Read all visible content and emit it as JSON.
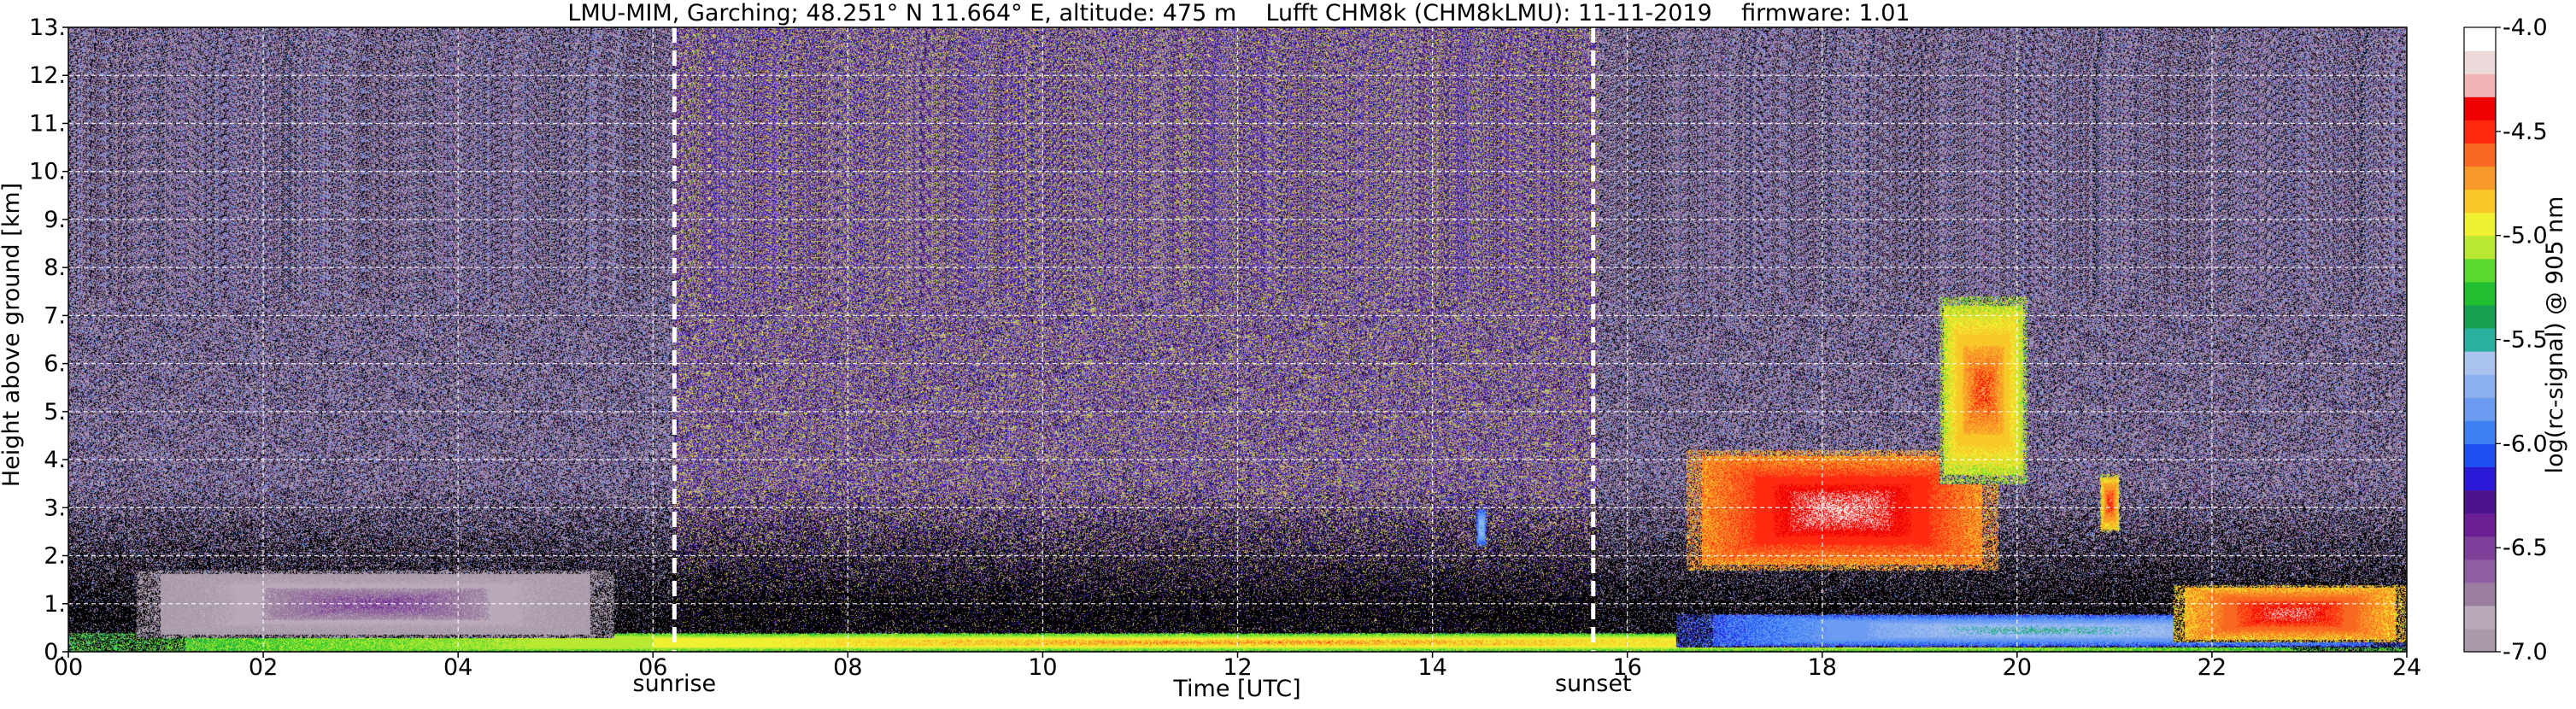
{
  "chart_data": {
    "type": "heatmap",
    "title": "LMU-MIM, Garching; 48.251° N 11.664° E, altitude: 475 m    Lufft CHM8k (CHM8kLMU): 11-11-2019    firmware: 1.01",
    "xlabel": "Time [UTC]",
    "ylabel": "Height above ground [km]",
    "xlim": [
      0,
      24
    ],
    "ylim": [
      0,
      13
    ],
    "x_ticks": [
      {
        "value": 0,
        "label": "00"
      },
      {
        "value": 2,
        "label": "02"
      },
      {
        "value": 4,
        "label": "04"
      },
      {
        "value": 6,
        "label": "06"
      },
      {
        "value": 8,
        "label": "08"
      },
      {
        "value": 10,
        "label": "10"
      },
      {
        "value": 12,
        "label": "12"
      },
      {
        "value": 14,
        "label": "14"
      },
      {
        "value": 16,
        "label": "16"
      },
      {
        "value": 18,
        "label": "18"
      },
      {
        "value": 20,
        "label": "20"
      },
      {
        "value": 22,
        "label": "22"
      },
      {
        "value": 24,
        "label": "24"
      }
    ],
    "y_ticks": [
      {
        "value": 0,
        "label": "0."
      },
      {
        "value": 1,
        "label": "1."
      },
      {
        "value": 2,
        "label": "2."
      },
      {
        "value": 3,
        "label": "3."
      },
      {
        "value": 4,
        "label": "4."
      },
      {
        "value": 5,
        "label": "5."
      },
      {
        "value": 6,
        "label": "6."
      },
      {
        "value": 7,
        "label": "7."
      },
      {
        "value": 8,
        "label": "8."
      },
      {
        "value": 9,
        "label": "9."
      },
      {
        "value": 10,
        "label": "10."
      },
      {
        "value": 11,
        "label": "11."
      },
      {
        "value": 12,
        "label": "12."
      },
      {
        "value": 13,
        "label": "13."
      }
    ],
    "grid": true,
    "markers": [
      {
        "label": "sunrise",
        "time": 6.22
      },
      {
        "label": "sunset",
        "time": 15.65
      }
    ],
    "colorbar": {
      "label": "log(rc-signal) @ 905 nm",
      "range": [
        -7.0,
        -4.0
      ],
      "tick_labels": [
        {
          "value": -4.0,
          "label": "-4.0"
        },
        {
          "value": -4.5,
          "label": "-4.5"
        },
        {
          "value": -5.0,
          "label": "-5.0"
        },
        {
          "value": -5.5,
          "label": "-5.5"
        },
        {
          "value": -6.0,
          "label": "-6.0"
        },
        {
          "value": -6.5,
          "label": "-6.5"
        },
        {
          "value": -7.0,
          "label": "-7.0"
        }
      ],
      "colors": [
        "#a89aa8",
        "#b9a9b9",
        "#9b7fa0",
        "#8e5ea0",
        "#7c3f9a",
        "#6a1f94",
        "#4b138f",
        "#2a1ad8",
        "#1e4ff2",
        "#3f80f5",
        "#6c9cf2",
        "#8db1f0",
        "#a9c3ee",
        "#2ab0a0",
        "#18a050",
        "#22c030",
        "#5ad830",
        "#b8e832",
        "#f0f032",
        "#f8c828",
        "#f89828",
        "#f86820",
        "#ff2a10",
        "#ee0000",
        "#f2b3b6",
        "#ecdada",
        "#ffffff"
      ]
    },
    "features": [
      {
        "name": "near-surface aerosol layer",
        "time": [
          0,
          24
        ],
        "height_km": [
          0.0,
          0.4
        ],
        "log_signal": -5.0
      },
      {
        "name": "night-time residual layer",
        "time": [
          0.7,
          5.6
        ],
        "height_km": [
          0.3,
          1.7
        ],
        "log_signal": -6.8
      },
      {
        "name": "boundary layer evening",
        "time": [
          16.5,
          24
        ],
        "height_km": [
          0.1,
          0.8
        ],
        "log_signal": -5.8
      },
      {
        "name": "low cloud layer",
        "time": [
          21.6,
          24
        ],
        "height_km": [
          0.2,
          1.4
        ],
        "log_signal": -4.6
      },
      {
        "name": "mid-level cloud band",
        "time": [
          16.6,
          19.8
        ],
        "height_km": [
          1.7,
          4.2
        ],
        "log_signal": -4.5
      },
      {
        "name": "rising cloud",
        "time": [
          19.2,
          20.1
        ],
        "height_km": [
          3.5,
          7.4
        ],
        "log_signal": -4.8
      },
      {
        "name": "isolated cloud 21 UTC",
        "time": [
          20.85,
          21.05
        ],
        "height_km": [
          2.5,
          3.7
        ],
        "log_signal": -4.7
      },
      {
        "name": "isolated cloud 14.5 UTC",
        "time": [
          14.45,
          14.55
        ],
        "height_km": [
          2.2,
          3.0
        ],
        "log_signal": -5.8
      }
    ]
  }
}
